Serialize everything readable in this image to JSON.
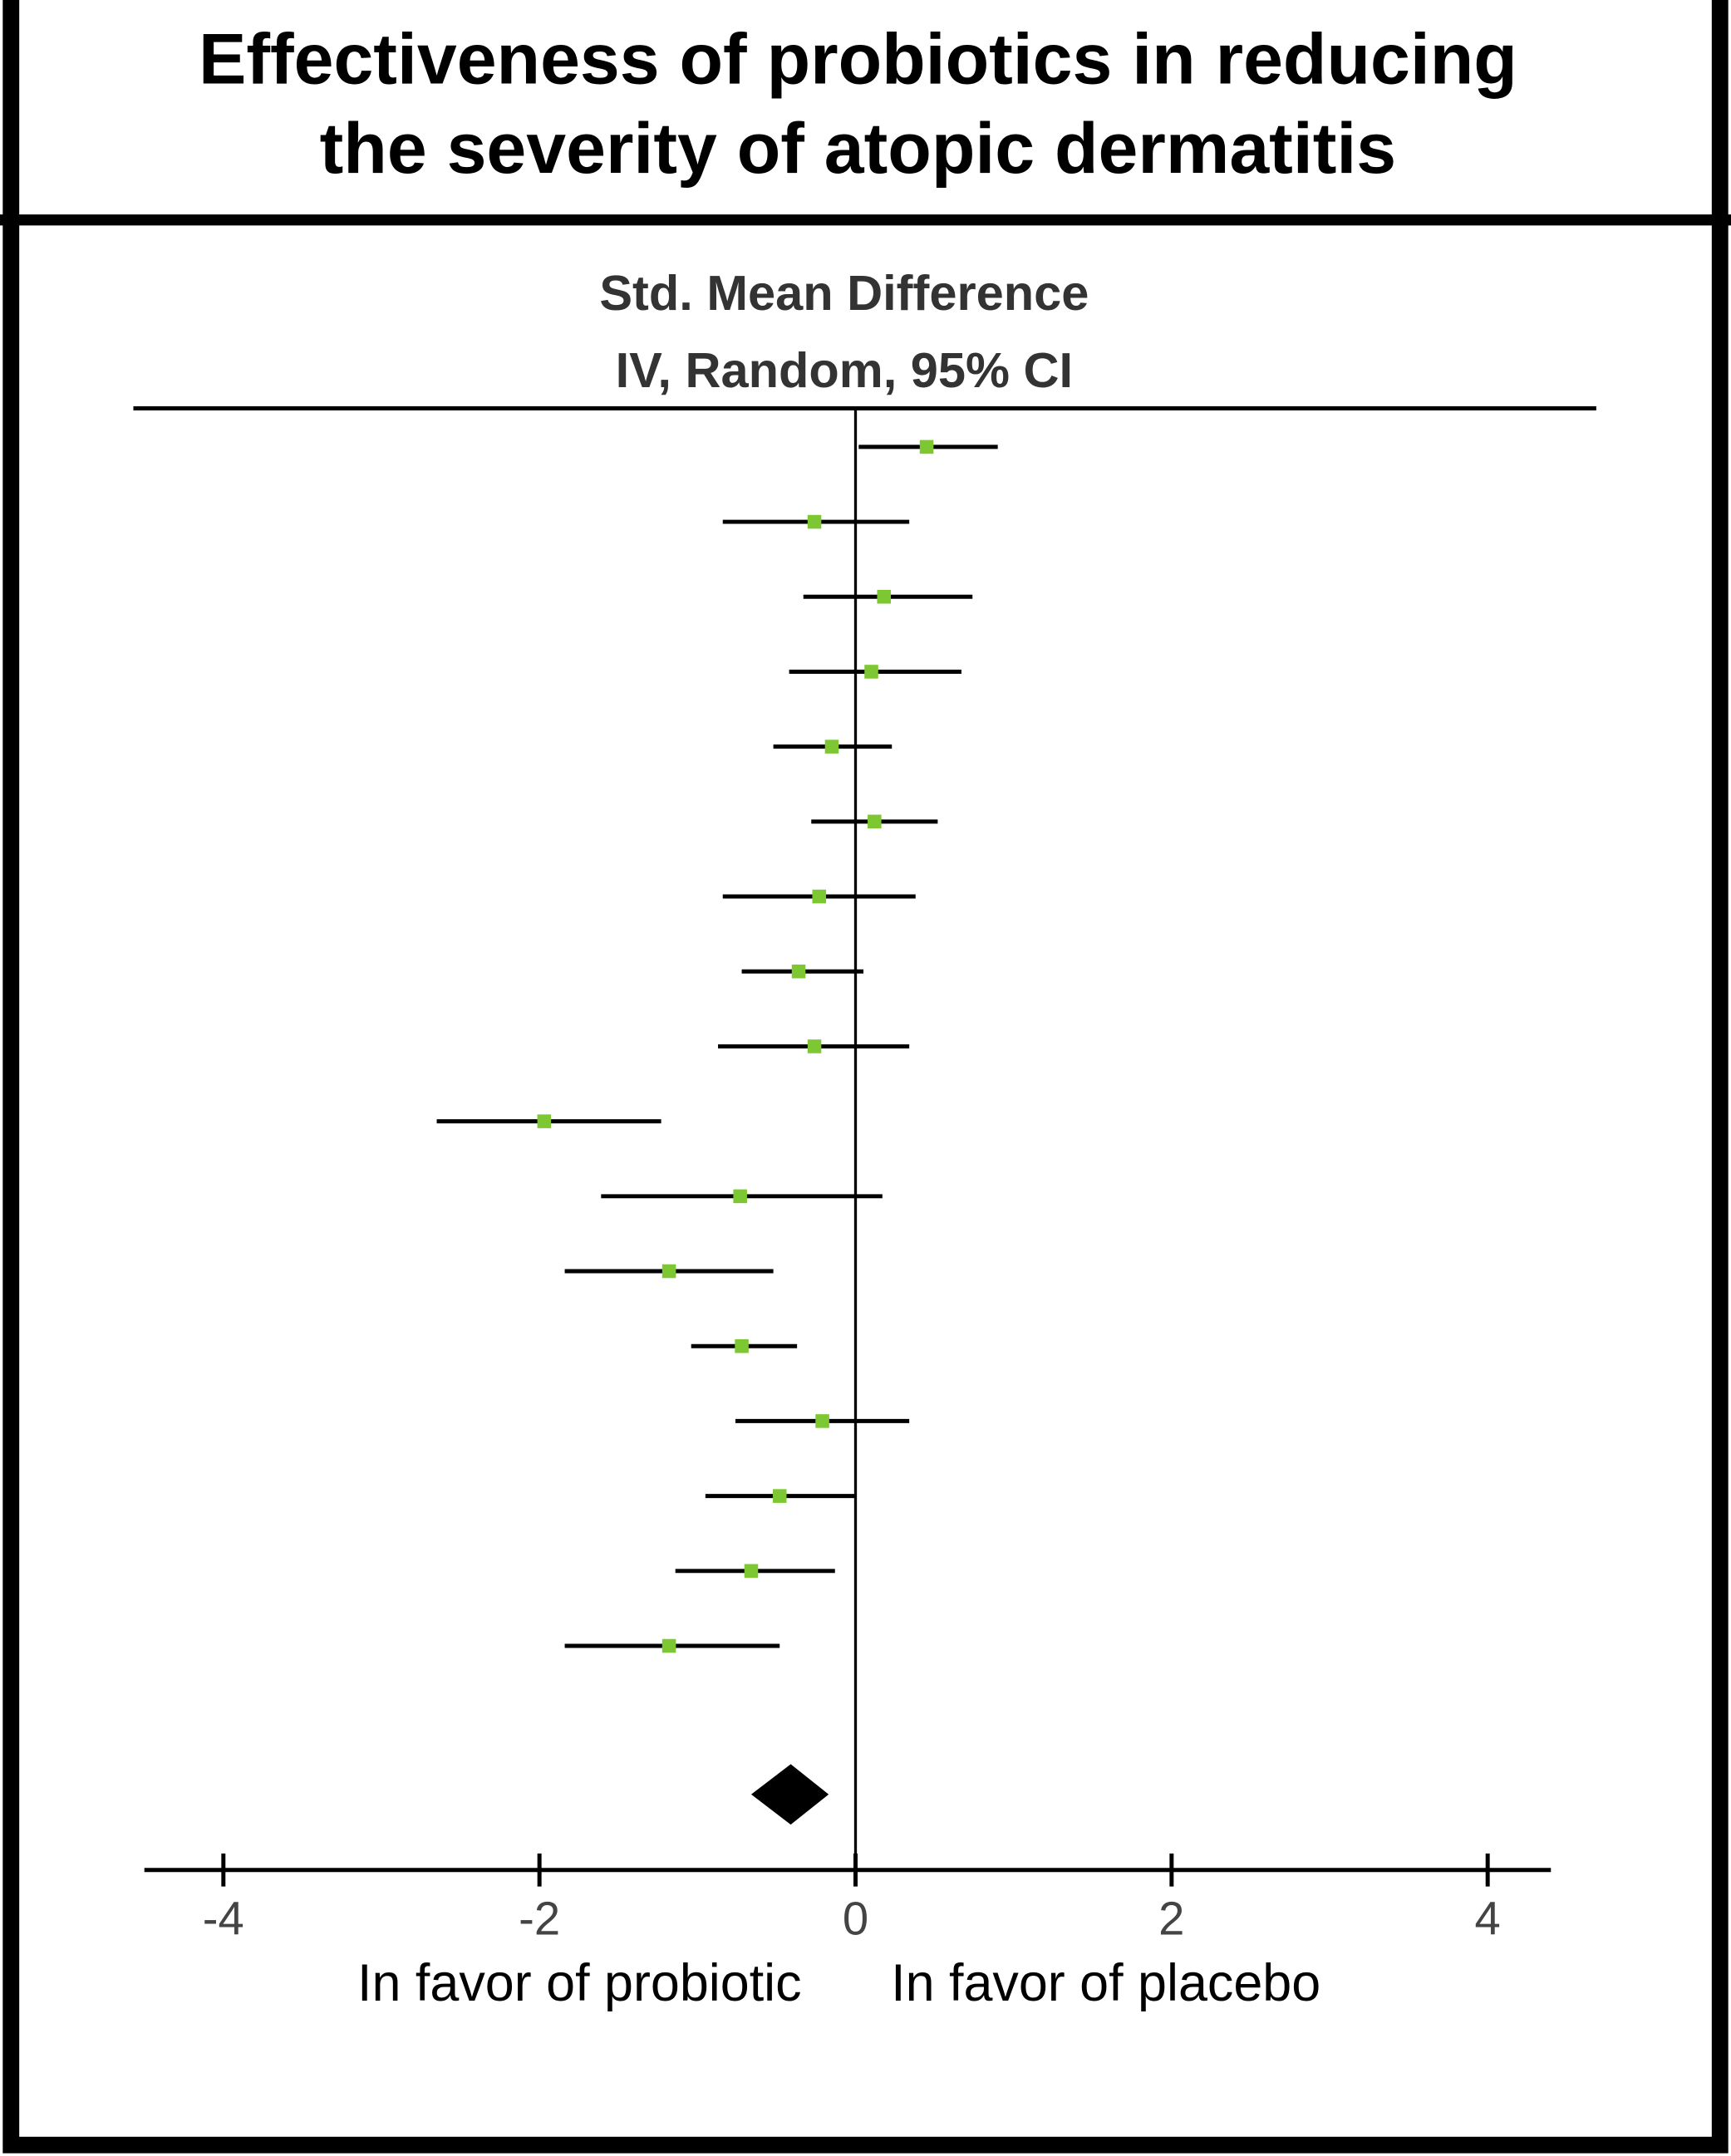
{
  "chart_data": {
    "type": "forest",
    "title": [
      "Effectiveness of probiotics in reducing",
      "the severity of atopic dermatitis"
    ],
    "header": [
      "Std. Mean Difference",
      "IV, Random, 95% CI"
    ],
    "estimates": [
      0.45,
      -0.26,
      0.18,
      0.1,
      -0.15,
      0.12,
      -0.23,
      -0.36,
      -0.26,
      -1.97,
      -0.73,
      -1.18,
      -0.72,
      -0.21,
      -0.48,
      -0.66,
      -1.18
    ],
    "ci_lower": [
      0.02,
      -0.84,
      -0.33,
      -0.42,
      -0.52,
      -0.28,
      -0.84,
      -0.72,
      -0.87,
      -2.65,
      -1.61,
      -1.84,
      -1.04,
      -0.76,
      -0.95,
      -1.14,
      -1.84
    ],
    "ci_upper": [
      0.9,
      0.34,
      0.74,
      0.67,
      0.23,
      0.52,
      0.38,
      0.05,
      0.34,
      -1.23,
      0.17,
      -0.52,
      -0.37,
      0.34,
      0.0,
      -0.13,
      -0.48
    ],
    "point_color": "#7dc832",
    "line_color": "#000000",
    "pooled": {
      "estimate": -0.41,
      "ci_lower": -0.66,
      "ci_upper": -0.17,
      "color": "#000000"
    },
    "xlim": [
      -4.5,
      4.4
    ],
    "xticks": [
      -4,
      -2,
      0,
      2,
      4
    ],
    "left_label": "In favor of probiotic",
    "right_label": "In favor of placebo"
  }
}
